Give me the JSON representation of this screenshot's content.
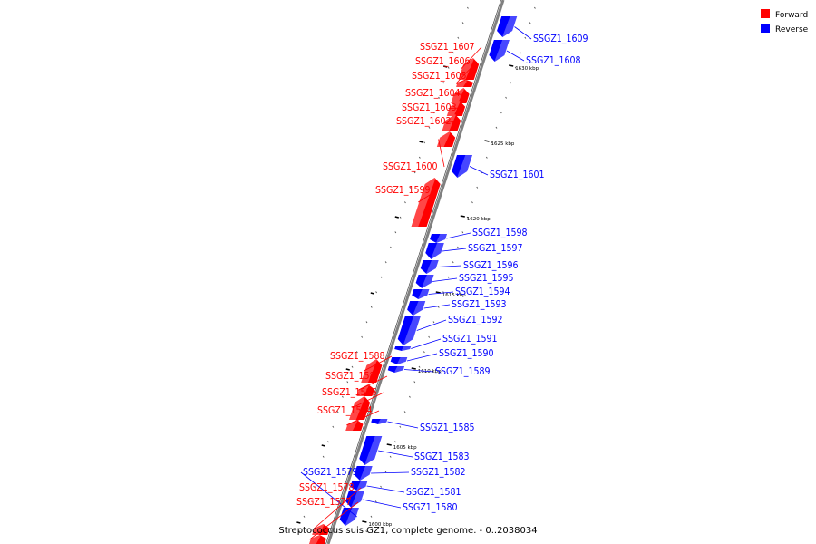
{
  "caption": "Streptococcus suis GZ1, complete genome. - 0..2038034",
  "legend": [
    {
      "label": "Forward",
      "color": "#ff0000"
    },
    {
      "label": "Reverse",
      "color": "#0000ff"
    }
  ],
  "colors": {
    "forward": "#ff0000",
    "reverse": "#0000ff",
    "backbone": "#808080"
  },
  "ticks": [
    "1630 kbp",
    "1625 kbp",
    "1620 kbp",
    "1615 kbp",
    "1610 kbp",
    "1605 kbp",
    "1600 kbp"
  ],
  "genes": [
    {
      "name": "SSGZ1_1609",
      "strand": "reverse"
    },
    {
      "name": "SSGZ1_1608",
      "strand": "reverse"
    },
    {
      "name": "SSGZ1_1607",
      "strand": "forward"
    },
    {
      "name": "SSGZ1_1606",
      "strand": "forward"
    },
    {
      "name": "SSGZ1_1605",
      "strand": "forward"
    },
    {
      "name": "SSGZ1_1604",
      "strand": "forward"
    },
    {
      "name": "SSGZ1_1603",
      "strand": "forward"
    },
    {
      "name": "SSGZ1_1602",
      "strand": "forward"
    },
    {
      "name": "SSGZ1_1601",
      "strand": "reverse"
    },
    {
      "name": "SSGZ1_1600",
      "strand": "forward"
    },
    {
      "name": "SSGZ1_1599",
      "strand": "forward"
    },
    {
      "name": "SSGZ1_1598",
      "strand": "reverse"
    },
    {
      "name": "SSGZ1_1597",
      "strand": "reverse"
    },
    {
      "name": "SSGZ1_1596",
      "strand": "reverse"
    },
    {
      "name": "SSGZ1_1595",
      "strand": "reverse"
    },
    {
      "name": "SSGZ1_1594",
      "strand": "reverse"
    },
    {
      "name": "SSGZ1_1593",
      "strand": "reverse"
    },
    {
      "name": "SSGZ1_1592",
      "strand": "reverse"
    },
    {
      "name": "SSGZ1_1591",
      "strand": "reverse"
    },
    {
      "name": "SSGZ1_1590",
      "strand": "reverse"
    },
    {
      "name": "SSGZ1_1589",
      "strand": "reverse"
    },
    {
      "name": "SSGZ1_1588",
      "strand": "forward"
    },
    {
      "name": "SSGZ1_1587",
      "strand": "forward"
    },
    {
      "name": "SSGZ1_1586",
      "strand": "forward"
    },
    {
      "name": "SSGZ1_1584",
      "strand": "forward"
    },
    {
      "name": "SSGZ1_1585",
      "strand": "reverse"
    },
    {
      "name": "SSGZ1_1583",
      "strand": "reverse"
    },
    {
      "name": "SSGZ1_1582",
      "strand": "reverse"
    },
    {
      "name": "SSGZ1_1581",
      "strand": "reverse"
    },
    {
      "name": "SSGZ1_1580",
      "strand": "reverse"
    },
    {
      "name": "SSGZ1_1579",
      "strand": "reverse"
    },
    {
      "name": "SSGZ1_1578",
      "strand": "forward"
    },
    {
      "name": "SSGZ1_1577",
      "strand": "forward"
    }
  ]
}
